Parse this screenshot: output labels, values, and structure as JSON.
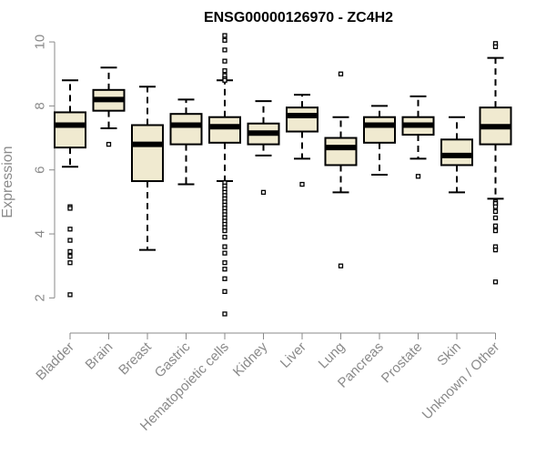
{
  "chart_data": {
    "type": "box",
    "title": "ENSG00000126970 - ZC4H2",
    "xlabel": "",
    "ylabel": "Expression",
    "ylim": [
      1.3,
      10.4
    ],
    "yticks": [
      2,
      4,
      6,
      8,
      10
    ],
    "grid": false,
    "box_fill": "#f0ead0",
    "categories": [
      "Bladder",
      "Brain",
      "Breast",
      "Gastric",
      "Hematopoietic cells",
      "Kidney",
      "Liver",
      "Lung",
      "Pancreas",
      "Prostate",
      "Skin",
      "Unknown / Other"
    ],
    "series": [
      {
        "category": "Bladder",
        "whisker_low": 6.1,
        "q1": 6.7,
        "median": 7.4,
        "q3": 7.8,
        "whisker_high": 8.8,
        "outliers": [
          4.85,
          4.8,
          4.15,
          3.8,
          3.45,
          3.3,
          3.1,
          2.1
        ]
      },
      {
        "category": "Brain",
        "whisker_low": 7.3,
        "q1": 7.85,
        "median": 8.2,
        "q3": 8.5,
        "whisker_high": 9.2,
        "outliers": [
          6.8
        ]
      },
      {
        "category": "Breast",
        "whisker_low": 3.5,
        "q1": 5.65,
        "median": 6.8,
        "q3": 7.4,
        "whisker_high": 8.6,
        "outliers": []
      },
      {
        "category": "Gastric",
        "whisker_low": 5.55,
        "q1": 6.8,
        "median": 7.4,
        "q3": 7.75,
        "whisker_high": 8.2,
        "outliers": []
      },
      {
        "category": "Hematopoietic cells",
        "whisker_low": 5.65,
        "q1": 6.85,
        "median": 7.35,
        "q3": 7.65,
        "whisker_high": 8.8,
        "outliers": [
          10.2,
          10.05,
          9.75,
          9.4,
          9.1,
          8.95,
          8.85,
          8.8,
          5.6,
          5.5,
          5.4,
          5.3,
          5.2,
          5.1,
          5.0,
          4.9,
          4.8,
          4.7,
          4.6,
          4.5,
          4.4,
          4.3,
          4.2,
          4.1,
          3.9,
          3.6,
          3.4,
          3.1,
          2.9,
          2.6,
          2.2,
          1.5
        ]
      },
      {
        "category": "Kidney",
        "whisker_low": 6.45,
        "q1": 6.8,
        "median": 7.15,
        "q3": 7.45,
        "whisker_high": 8.15,
        "outliers": [
          5.3
        ]
      },
      {
        "category": "Liver",
        "whisker_low": 6.35,
        "q1": 7.2,
        "median": 7.7,
        "q3": 7.95,
        "whisker_high": 8.35,
        "outliers": [
          5.55
        ]
      },
      {
        "category": "Lung",
        "whisker_low": 5.3,
        "q1": 6.15,
        "median": 6.7,
        "q3": 7.0,
        "whisker_high": 7.65,
        "outliers": [
          9.0,
          3.0
        ]
      },
      {
        "category": "Pancreas",
        "whisker_low": 5.85,
        "q1": 6.85,
        "median": 7.4,
        "q3": 7.65,
        "whisker_high": 8.0,
        "outliers": []
      },
      {
        "category": "Prostate",
        "whisker_low": 6.35,
        "q1": 7.1,
        "median": 7.4,
        "q3": 7.65,
        "whisker_high": 8.3,
        "outliers": [
          5.8
        ]
      },
      {
        "category": "Skin",
        "whisker_low": 5.3,
        "q1": 6.15,
        "median": 6.45,
        "q3": 6.95,
        "whisker_high": 7.65,
        "outliers": []
      },
      {
        "category": "Unknown / Other",
        "whisker_low": 5.1,
        "q1": 6.8,
        "median": 7.35,
        "q3": 7.95,
        "whisker_high": 9.5,
        "outliers": [
          9.95,
          9.85,
          5.0,
          4.95,
          4.85,
          4.7,
          4.5,
          4.25,
          4.1,
          3.6,
          3.5,
          2.5
        ]
      }
    ]
  }
}
